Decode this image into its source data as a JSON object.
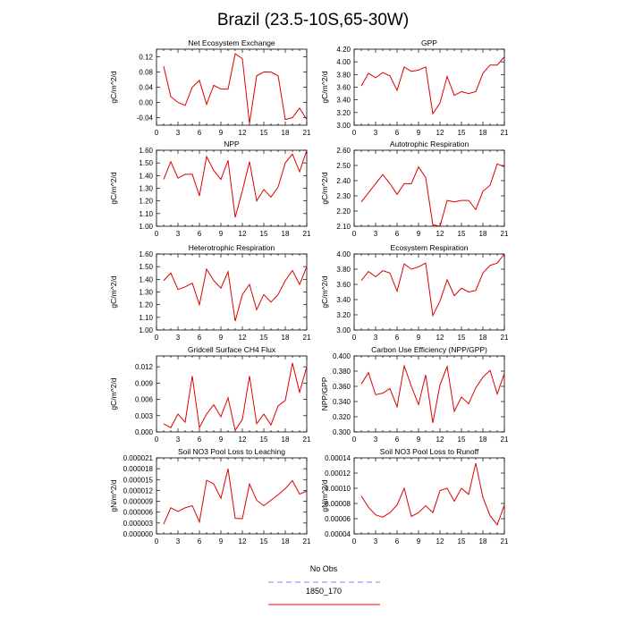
{
  "title": "Brazil (23.5-10S,65-30W)",
  "legend": {
    "items": [
      {
        "label": "No Obs",
        "color": "#8080ff",
        "style": "dashed"
      },
      {
        "label": "1850_170",
        "color": "#ff0000",
        "style": "solid"
      }
    ]
  },
  "colors": {
    "line": "#dd0000",
    "axis": "#000000"
  },
  "chart_data": [
    {
      "type": "line",
      "title": "Net Ecosystem Exchange",
      "ylabel": "gC/m^2/d",
      "xlim": [
        0,
        21
      ],
      "ylim": [
        -0.06,
        0.14
      ],
      "xticks": [
        0,
        3,
        6,
        9,
        12,
        15,
        18,
        21
      ],
      "yticks": [
        -0.04,
        0.0,
        0.04,
        0.08,
        0.12
      ],
      "ytick_labels": [
        "-0.04",
        "0.00",
        "0.04",
        "0.08",
        "0.12"
      ],
      "series": [
        {
          "x": [
            1,
            2,
            3,
            4,
            5,
            6,
            7,
            8,
            9,
            10,
            11,
            12,
            13,
            14,
            15,
            16,
            17,
            18,
            19,
            20,
            21
          ],
          "values": [
            0.095,
            0.015,
            0.0,
            -0.008,
            0.04,
            0.058,
            -0.005,
            0.045,
            0.035,
            0.035,
            0.128,
            0.115,
            -0.055,
            0.07,
            0.08,
            0.08,
            0.07,
            -0.045,
            -0.04,
            -0.015,
            -0.045
          ]
        }
      ]
    },
    {
      "type": "line",
      "title": "GPP",
      "ylabel": "gC/m^2/d",
      "xlim": [
        0,
        21
      ],
      "ylim": [
        3.0,
        4.2
      ],
      "xticks": [
        0,
        3,
        6,
        9,
        12,
        15,
        18,
        21
      ],
      "yticks": [
        3.0,
        3.2,
        3.4,
        3.6,
        3.8,
        4.0,
        4.2
      ],
      "ytick_labels": [
        "3.00",
        "3.20",
        "3.40",
        "3.60",
        "3.80",
        "4.00",
        "4.20"
      ],
      "series": [
        {
          "x": [
            1,
            2,
            3,
            4,
            5,
            6,
            7,
            8,
            9,
            10,
            11,
            12,
            13,
            14,
            15,
            16,
            17,
            18,
            19,
            20,
            21
          ],
          "values": [
            3.62,
            3.82,
            3.75,
            3.83,
            3.78,
            3.55,
            3.92,
            3.85,
            3.87,
            3.92,
            3.18,
            3.35,
            3.77,
            3.47,
            3.53,
            3.5,
            3.53,
            3.82,
            3.95,
            3.95,
            4.08
          ]
        }
      ]
    },
    {
      "type": "line",
      "title": "NPP",
      "ylabel": "gC/m^2/d",
      "xlim": [
        0,
        21
      ],
      "ylim": [
        1.0,
        1.6
      ],
      "xticks": [
        0,
        3,
        6,
        9,
        12,
        15,
        18,
        21
      ],
      "yticks": [
        1.0,
        1.1,
        1.2,
        1.3,
        1.4,
        1.5,
        1.6
      ],
      "ytick_labels": [
        "1.00",
        "1.10",
        "1.20",
        "1.30",
        "1.40",
        "1.50",
        "1.60"
      ],
      "series": [
        {
          "x": [
            1,
            2,
            3,
            4,
            5,
            6,
            7,
            8,
            9,
            10,
            11,
            12,
            13,
            14,
            15,
            16,
            17,
            18,
            19,
            20,
            21
          ],
          "values": [
            1.37,
            1.51,
            1.38,
            1.41,
            1.41,
            1.24,
            1.55,
            1.44,
            1.37,
            1.52,
            1.07,
            1.28,
            1.51,
            1.2,
            1.29,
            1.23,
            1.31,
            1.5,
            1.57,
            1.43,
            1.6
          ]
        }
      ]
    },
    {
      "type": "line",
      "title": "Autotrophic Respiration",
      "ylabel": "gC/m^2/d",
      "xlim": [
        0,
        21
      ],
      "ylim": [
        2.1,
        2.6
      ],
      "xticks": [
        0,
        3,
        6,
        9,
        12,
        15,
        18,
        21
      ],
      "yticks": [
        2.1,
        2.2,
        2.3,
        2.4,
        2.5,
        2.6
      ],
      "ytick_labels": [
        "2.10",
        "2.20",
        "2.30",
        "2.40",
        "2.50",
        "2.60"
      ],
      "series": [
        {
          "x": [
            1,
            2,
            3,
            4,
            5,
            6,
            7,
            8,
            9,
            10,
            11,
            12,
            13,
            14,
            15,
            16,
            17,
            18,
            19,
            20,
            21
          ],
          "values": [
            2.26,
            2.32,
            2.38,
            2.44,
            2.38,
            2.31,
            2.38,
            2.38,
            2.49,
            2.42,
            2.11,
            2.1,
            2.27,
            2.26,
            2.27,
            2.27,
            2.21,
            2.33,
            2.37,
            2.51,
            2.49
          ]
        }
      ]
    },
    {
      "type": "line",
      "title": "Heterotrophic Respiration",
      "ylabel": "gC/m^2/d",
      "xlim": [
        0,
        21
      ],
      "ylim": [
        1.0,
        1.6
      ],
      "xticks": [
        0,
        3,
        6,
        9,
        12,
        15,
        18,
        21
      ],
      "yticks": [
        1.0,
        1.1,
        1.2,
        1.3,
        1.4,
        1.5,
        1.6
      ],
      "ytick_labels": [
        "1.00",
        "1.10",
        "1.20",
        "1.30",
        "1.40",
        "1.50",
        "1.60"
      ],
      "series": [
        {
          "x": [
            1,
            2,
            3,
            4,
            5,
            6,
            7,
            8,
            9,
            10,
            11,
            12,
            13,
            14,
            15,
            16,
            17,
            18,
            19,
            20,
            21
          ],
          "values": [
            1.39,
            1.45,
            1.32,
            1.34,
            1.37,
            1.2,
            1.48,
            1.39,
            1.33,
            1.46,
            1.07,
            1.28,
            1.36,
            1.16,
            1.28,
            1.22,
            1.28,
            1.39,
            1.47,
            1.36,
            1.5
          ]
        }
      ]
    },
    {
      "type": "line",
      "title": "Ecosystem Respiration",
      "ylabel": "gC/m^2/d",
      "xlim": [
        0,
        21
      ],
      "ylim": [
        3.0,
        4.0
      ],
      "xticks": [
        0,
        3,
        6,
        9,
        12,
        15,
        18,
        21
      ],
      "yticks": [
        3.0,
        3.2,
        3.4,
        3.6,
        3.8,
        4.0
      ],
      "ytick_labels": [
        "3.00",
        "3.20",
        "3.40",
        "3.60",
        "3.80",
        "4.00"
      ],
      "series": [
        {
          "x": [
            1,
            2,
            3,
            4,
            5,
            6,
            7,
            8,
            9,
            10,
            11,
            12,
            13,
            14,
            15,
            16,
            17,
            18,
            19,
            20,
            21
          ],
          "values": [
            3.65,
            3.77,
            3.7,
            3.78,
            3.75,
            3.51,
            3.87,
            3.8,
            3.83,
            3.88,
            3.19,
            3.38,
            3.66,
            3.45,
            3.55,
            3.5,
            3.52,
            3.75,
            3.85,
            3.88,
            4.0
          ]
        }
      ]
    },
    {
      "type": "line",
      "title": "Gridcell Surface CH4 Flux",
      "ylabel": "gC/m^2/d",
      "xlim": [
        0,
        21
      ],
      "ylim": [
        0.0,
        0.014
      ],
      "xticks": [
        0,
        3,
        6,
        9,
        12,
        15,
        18,
        21
      ],
      "yticks": [
        0.0,
        0.003,
        0.006,
        0.009,
        0.012
      ],
      "ytick_labels": [
        "0.000",
        "0.003",
        "0.006",
        "0.009",
        "0.012"
      ],
      "series": [
        {
          "x": [
            1,
            2,
            3,
            4,
            5,
            6,
            7,
            8,
            9,
            10,
            11,
            12,
            13,
            14,
            15,
            16,
            17,
            18,
            19,
            20,
            21
          ],
          "values": [
            0.0015,
            0.0008,
            0.0033,
            0.0018,
            0.0103,
            0.0008,
            0.0033,
            0.005,
            0.0028,
            0.0063,
            0.0003,
            0.0023,
            0.0103,
            0.0015,
            0.0033,
            0.0013,
            0.0048,
            0.0058,
            0.0127,
            0.0073,
            0.012
          ]
        }
      ]
    },
    {
      "type": "line",
      "title": "Carbon Use Efficiency (NPP/GPP)",
      "ylabel": "NPP/GPP",
      "xlim": [
        0,
        21
      ],
      "ylim": [
        0.3,
        0.4
      ],
      "xticks": [
        0,
        3,
        6,
        9,
        12,
        15,
        18,
        21
      ],
      "yticks": [
        0.3,
        0.32,
        0.34,
        0.36,
        0.38,
        0.4
      ],
      "ytick_labels": [
        "0.300",
        "0.320",
        "0.340",
        "0.360",
        "0.380",
        "0.400"
      ],
      "series": [
        {
          "x": [
            1,
            2,
            3,
            4,
            5,
            6,
            7,
            8,
            9,
            10,
            11,
            12,
            13,
            14,
            15,
            16,
            17,
            18,
            19,
            20,
            21
          ],
          "values": [
            0.363,
            0.378,
            0.349,
            0.351,
            0.357,
            0.333,
            0.387,
            0.36,
            0.336,
            0.375,
            0.312,
            0.362,
            0.386,
            0.327,
            0.346,
            0.337,
            0.358,
            0.372,
            0.381,
            0.35,
            0.377
          ]
        }
      ]
    },
    {
      "type": "line",
      "title": "Soil NO3 Pool Loss to Leaching",
      "ylabel": "gN/m^2/d",
      "xlim": [
        0,
        21
      ],
      "ylim": [
        0.0,
        2.1e-05
      ],
      "xticks": [
        0,
        3,
        6,
        9,
        12,
        15,
        18,
        21
      ],
      "yticks": [
        0.0,
        3e-06,
        6e-06,
        9e-06,
        1.2e-05,
        1.5e-05,
        1.8e-05,
        2.1e-05
      ],
      "ytick_labels": [
        "0.000000",
        "0.000003",
        "0.000006",
        "0.000009",
        "0.000012",
        "0.000015",
        "0.000018",
        "0.000021"
      ],
      "series": [
        {
          "x": [
            1,
            2,
            3,
            4,
            5,
            6,
            7,
            8,
            9,
            10,
            11,
            12,
            13,
            14,
            15,
            16,
            17,
            18,
            19,
            20,
            21
          ],
          "values": [
            2.7e-06,
            7.2e-06,
            6.2e-06,
            7.2e-06,
            7.8e-06,
            3.3e-06,
            1.48e-05,
            1.38e-05,
            9.8e-06,
            1.8e-05,
            4.3e-06,
            4.2e-06,
            1.38e-05,
            9.3e-06,
            7.8e-06,
            9.3e-06,
            1.08e-05,
            1.25e-05,
            1.47e-05,
            1.1e-05,
            1.18e-05
          ]
        }
      ]
    },
    {
      "type": "line",
      "title": "Soil NO3 Pool Loss to Runoff",
      "ylabel": "gN/m^2/d",
      "xlim": [
        0,
        21
      ],
      "ylim": [
        4e-05,
        0.00014
      ],
      "xticks": [
        0,
        3,
        6,
        9,
        12,
        15,
        18,
        21
      ],
      "yticks": [
        4e-05,
        6e-05,
        8e-05,
        0.0001,
        0.00012,
        0.00014
      ],
      "ytick_labels": [
        "0.00004",
        "0.00006",
        "0.00008",
        "0.00010",
        "0.00012",
        "0.00014"
      ],
      "series": [
        {
          "x": [
            1,
            2,
            3,
            4,
            5,
            6,
            7,
            8,
            9,
            10,
            11,
            12,
            13,
            14,
            15,
            16,
            17,
            18,
            19,
            20,
            21
          ],
          "values": [
            9e-05,
            7.5e-05,
            6.5e-05,
            6.2e-05,
            6.8e-05,
            7.8e-05,
            0.0001,
            6.3e-05,
            6.8e-05,
            7.7e-05,
            6.8e-05,
            9.7e-05,
            0.0001,
            8.3e-05,
            0.0001,
            9.2e-05,
            0.000133,
            8.8e-05,
            6.4e-05,
            5.2e-05,
            7.8e-05
          ]
        }
      ]
    }
  ]
}
